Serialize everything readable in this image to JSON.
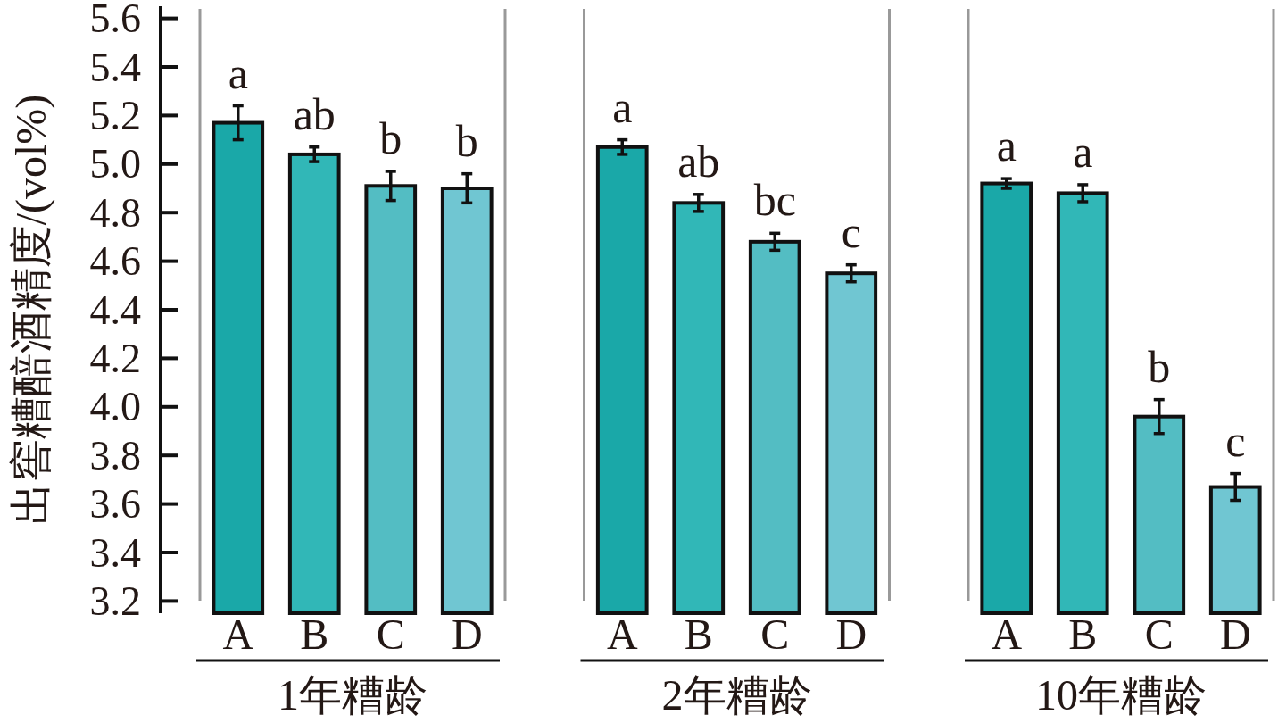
{
  "chart_data": [
    {
      "type": "bar",
      "ylabel": "出窖糟醅酒精度/(vol%)",
      "xlabel": "1年糟龄",
      "categories": [
        "A",
        "B",
        "C",
        "D"
      ],
      "values": [
        5.17,
        5.04,
        4.91,
        4.9
      ],
      "errors": [
        0.07,
        0.03,
        0.06,
        0.06
      ],
      "colors": [
        "#1aa8a8",
        "#31b7b7",
        "#53bdc3",
        "#70c6d2"
      ],
      "ylim": [
        3.15,
        5.65
      ],
      "yticks": [
        3.2,
        3.4,
        3.6,
        3.8,
        {
          "value": 4,
          "label": "4.0"
        },
        4.2,
        4.4,
        4.6,
        4.8,
        {
          "value": 5,
          "label": "5.0"
        },
        5.2,
        5.4,
        5.6
      ],
      "annotations": [
        {
          "text": "a",
          "x": "A",
          "y": 5.24
        },
        {
          "text": "ab",
          "x": "B",
          "y": 5.07
        },
        {
          "text": "b",
          "x": "C",
          "y": 4.97
        },
        {
          "text": "b",
          "x": "D",
          "y": 4.96
        }
      ]
    },
    {
      "type": "bar",
      "xlabel": "2年糟龄",
      "categories": [
        "A",
        "B",
        "C",
        "D"
      ],
      "values": [
        5.07,
        4.84,
        4.68,
        4.55
      ],
      "errors": [
        0.03,
        0.035,
        0.035,
        0.035
      ],
      "colors": [
        "#1aa8a8",
        "#31b7b7",
        "#53bdc3",
        "#70c6d2"
      ],
      "ylim": [
        3.15,
        5.65
      ],
      "tick_labels": "x",
      "annotations": [
        {
          "text": "a",
          "x": "A",
          "y": 5.1
        },
        {
          "text": "ab",
          "x": "B",
          "y": 4.875
        },
        {
          "text": "bc",
          "x": "C",
          "y": 4.715
        },
        {
          "text": "c",
          "x": "D",
          "y": 4.585
        }
      ]
    },
    {
      "type": "bar",
      "xlabel": "10年糟龄",
      "categories": [
        "A",
        "B",
        "C",
        "D"
      ],
      "values": [
        4.92,
        4.88,
        3.96,
        3.67
      ],
      "errors": [
        0.02,
        0.035,
        0.07,
        0.055
      ],
      "colors": [
        "#1aa8a8",
        "#31b7b7",
        "#53bdc3",
        "#70c6d2"
      ],
      "ylim": [
        3.15,
        5.65
      ],
      "tick_labels": "x",
      "annotations": [
        {
          "text": "a",
          "x": "A",
          "y": 4.94
        },
        {
          "text": "a",
          "x": "B",
          "y": 4.915
        },
        {
          "text": "b",
          "x": "C",
          "y": 4.03
        },
        {
          "text": "c",
          "x": "D",
          "y": 3.725
        }
      ]
    }
  ]
}
